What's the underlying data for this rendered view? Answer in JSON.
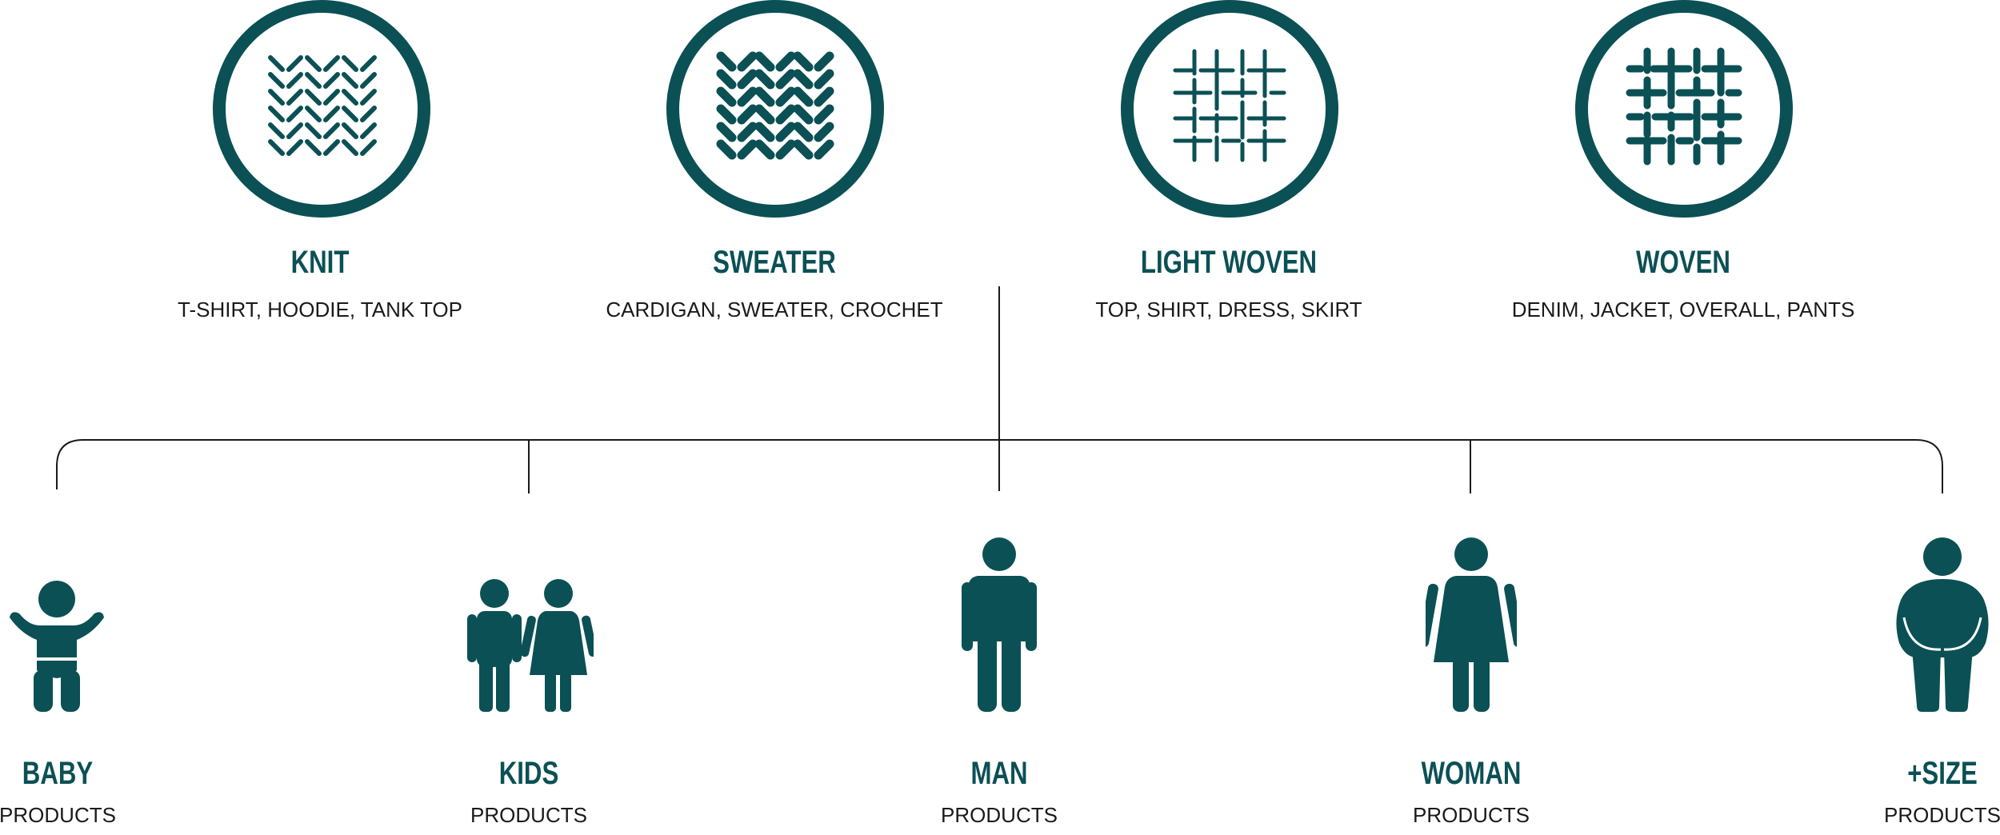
{
  "colors": {
    "accent": "#0b5055",
    "line": "#1a1a1a",
    "text": "#1a1a1a"
  },
  "fabrics": [
    {
      "title": "KNIT",
      "subtitle": "T-SHIRT, HOODIE, TANK TOP",
      "icon": "knit-pattern-icon"
    },
    {
      "title": "SWEATER",
      "subtitle": "CARDIGAN, SWEATER, CROCHET",
      "icon": "sweater-pattern-icon"
    },
    {
      "title": "LIGHT WOVEN",
      "subtitle": "TOP, SHIRT, DRESS, SKIRT",
      "icon": "light-woven-pattern-icon"
    },
    {
      "title": "WOVEN",
      "subtitle": "DENIM, JACKET, OVERALL, PANTS",
      "icon": "woven-pattern-icon"
    }
  ],
  "categories": [
    {
      "title": "BABY",
      "subtitle": "PRODUCTS",
      "icon": "baby-icon"
    },
    {
      "title": "KIDS",
      "subtitle": "PRODUCTS",
      "icon": "kids-icon"
    },
    {
      "title": "MAN",
      "subtitle": "PRODUCTS",
      "icon": "man-icon"
    },
    {
      "title": "WOMAN",
      "subtitle": "PRODUCTS",
      "icon": "woman-icon"
    },
    {
      "title": "+SIZE",
      "subtitle": "PRODUCTS",
      "icon": "plus-size-icon"
    }
  ]
}
